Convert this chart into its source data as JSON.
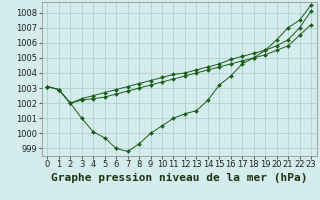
{
  "title": "Graphe pression niveau de la mer (hPa)",
  "xlabel_ticks": [
    "0",
    "1",
    "2",
    "3",
    "4",
    "5",
    "6",
    "7",
    "8",
    "9",
    "10",
    "11",
    "12",
    "13",
    "14",
    "15",
    "16",
    "17",
    "18",
    "19",
    "20",
    "21",
    "22",
    "23"
  ],
  "ylim": [
    998.5,
    1008.7
  ],
  "yticks": [
    999,
    1000,
    1001,
    1002,
    1003,
    1004,
    1005,
    1006,
    1007,
    1008
  ],
  "background_color": "#d4ecec",
  "grid_color": "#aacccc",
  "line_color": "#1a5c1a",
  "line1_y": [
    1003.1,
    1002.9,
    1002.0,
    1001.0,
    1000.1,
    999.7,
    999.0,
    998.8,
    999.3,
    1000.0,
    1000.5,
    1001.0,
    1001.3,
    1001.5,
    1002.2,
    1003.2,
    1003.8,
    1004.6,
    1005.0,
    1005.5,
    1006.2,
    1007.0,
    1007.5,
    1008.5
  ],
  "line2_y": [
    1003.1,
    1002.9,
    1002.0,
    1002.2,
    1002.3,
    1002.4,
    1002.6,
    1002.8,
    1003.0,
    1003.2,
    1003.4,
    1003.6,
    1003.8,
    1004.0,
    1004.2,
    1004.4,
    1004.6,
    1004.8,
    1005.0,
    1005.2,
    1005.5,
    1005.8,
    1006.5,
    1007.2
  ],
  "line3_y": [
    1003.1,
    1002.9,
    1002.0,
    1002.3,
    1002.5,
    1002.7,
    1002.9,
    1003.1,
    1003.3,
    1003.5,
    1003.7,
    1003.9,
    1004.0,
    1004.2,
    1004.4,
    1004.6,
    1004.9,
    1005.1,
    1005.3,
    1005.5,
    1005.8,
    1006.2,
    1007.0,
    1008.1
  ],
  "title_fontsize": 8,
  "tick_fontsize": 6,
  "figwidth": 3.2,
  "figheight": 2.0,
  "dpi": 100
}
